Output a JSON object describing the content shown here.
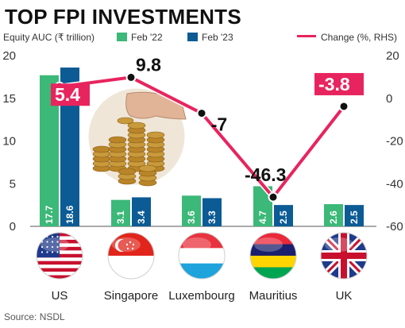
{
  "header": {
    "title": "TOP FPI INVESTMENTS",
    "source": "Source: NSDL"
  },
  "colors": {
    "feb22": "#3cb878",
    "feb23": "#0c5b95",
    "change": "#e8245e",
    "label_box": "#e8245e"
  },
  "chart_data": {
    "type": "bar",
    "title": "TOP FPI INVESTMENTS",
    "ylabel": "Equity AUC (₹ trillion)",
    "y2label": "Change (%, RHS)",
    "categories": [
      "US",
      "Singapore",
      "Luxembourg",
      "Mauritius",
      "UK"
    ],
    "series": [
      {
        "name": "Feb '22",
        "type": "bar",
        "axis": "left",
        "values": [
          17.7,
          3.1,
          3.6,
          4.7,
          2.6
        ]
      },
      {
        "name": "Feb '23",
        "type": "bar",
        "axis": "left",
        "values": [
          18.6,
          3.4,
          3.3,
          2.5,
          2.5
        ]
      },
      {
        "name": "Change (%, RHS)",
        "type": "line",
        "axis": "right",
        "values": [
          5.4,
          9.8,
          -7,
          -46.3,
          -3.8
        ]
      }
    ],
    "ylim": [
      0,
      20
    ],
    "y2lim": [
      -60,
      20
    ],
    "yticks": [
      "0",
      "5",
      "10",
      "15",
      "20"
    ],
    "y2ticks": [
      "-60",
      "-40",
      "-20",
      "0",
      "20"
    ],
    "bar_labels": [
      [
        "17.7",
        "18.6"
      ],
      [
        "3.1",
        "3.4"
      ],
      [
        "3.6",
        "3.3"
      ],
      [
        "4.7",
        "2.5"
      ],
      [
        "2.6",
        "2.5"
      ]
    ],
    "change_labels": [
      "5.4",
      "9.8",
      "-7",
      "-46.3",
      "-3.8"
    ],
    "highlighted_change_labels": [
      "US",
      "UK"
    ],
    "legend_position": "top",
    "grid": false,
    "flag_icons": [
      "us-flag-icon",
      "singapore-flag-icon",
      "luxembourg-flag-icon",
      "mauritius-flag-icon",
      "uk-flag-icon"
    ],
    "illustration": "coins-hand-icon"
  }
}
